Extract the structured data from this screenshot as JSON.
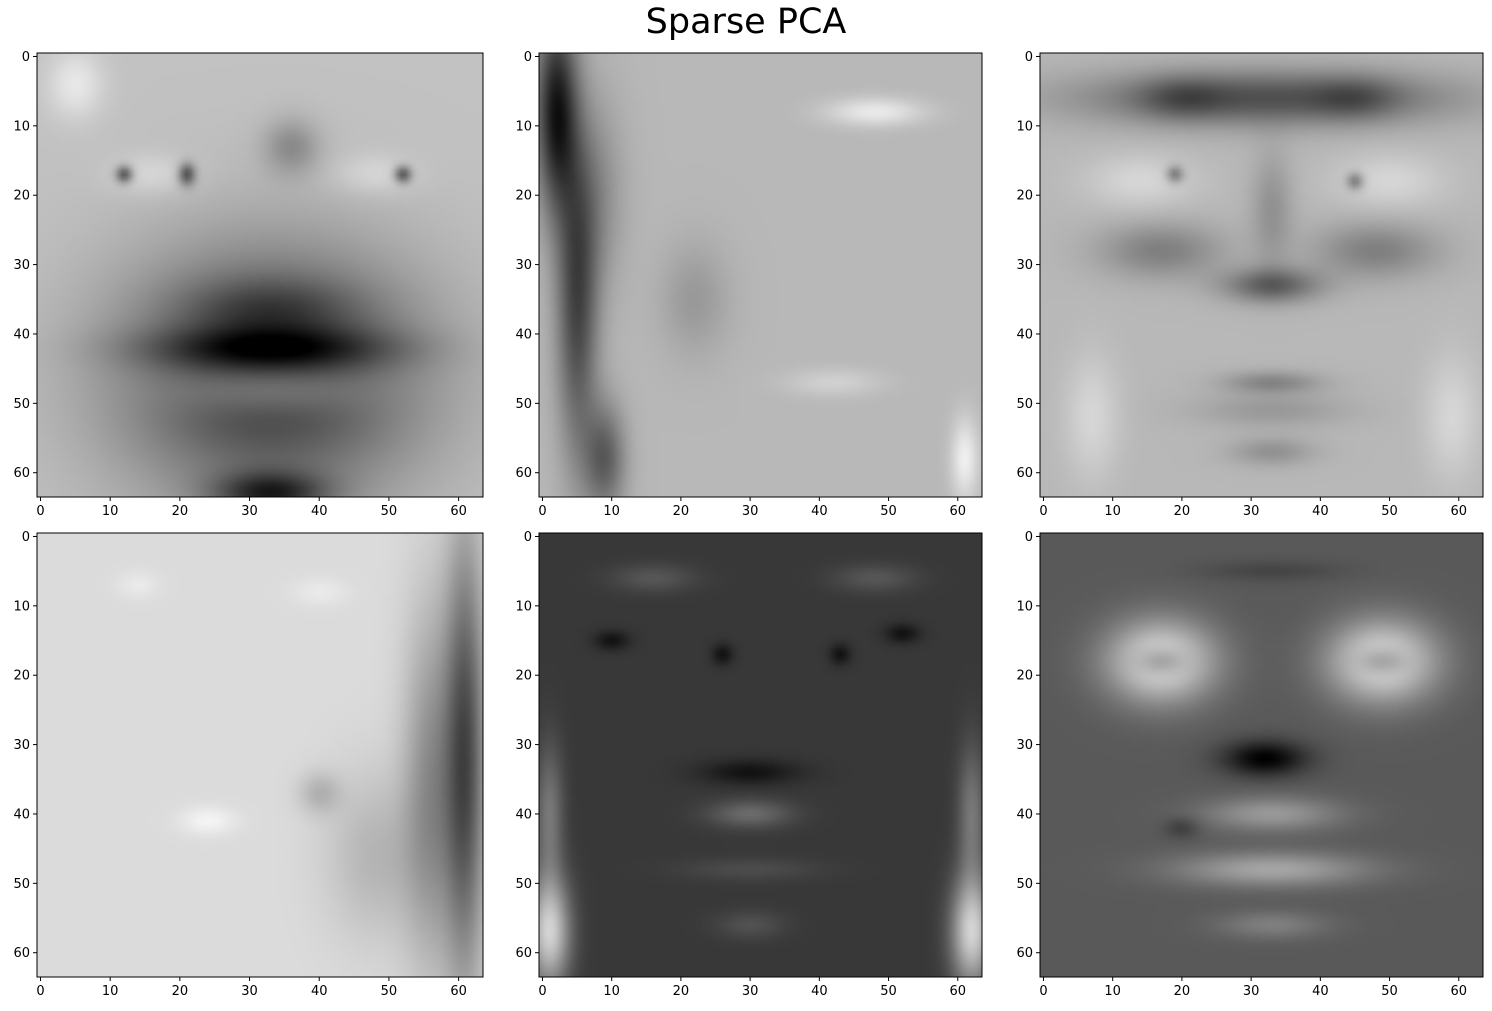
{
  "figure": {
    "title": "Sparse PCA"
  },
  "chart_data": [
    {
      "type": "heatmap",
      "colormap": "gray",
      "image_size": [
        64,
        64
      ],
      "xlim": [
        -0.5,
        63.5
      ],
      "ylim": [
        63.5,
        -0.5
      ],
      "xticks": [
        0,
        10,
        20,
        30,
        40,
        50,
        60
      ],
      "yticks": [
        0,
        10,
        20,
        30,
        40,
        50,
        60
      ],
      "background_level": 0.76,
      "features": [
        {
          "cx": 33,
          "cy": 46,
          "rx": 22,
          "ry": 18,
          "v": -0.55
        },
        {
          "cx": 33,
          "cy": 42,
          "rx": 18,
          "ry": 3,
          "v": -0.3
        },
        {
          "cx": 33,
          "cy": 48,
          "rx": 13,
          "ry": 3.5,
          "v": 0.22
        },
        {
          "cx": 33,
          "cy": 36,
          "rx": 12,
          "ry": 4,
          "v": -0.15
        },
        {
          "cx": 33,
          "cy": 63,
          "rx": 8,
          "ry": 3,
          "v": -0.45
        },
        {
          "cx": 16,
          "cy": 17,
          "rx": 6,
          "ry": 3,
          "v": 0.1
        },
        {
          "cx": 48,
          "cy": 17,
          "rx": 6,
          "ry": 3,
          "v": 0.1
        },
        {
          "cx": 12,
          "cy": 17,
          "rx": 1.2,
          "ry": 1.2,
          "v": -0.45
        },
        {
          "cx": 21,
          "cy": 17,
          "rx": 1.2,
          "ry": 1.6,
          "v": -0.45
        },
        {
          "cx": 52,
          "cy": 17,
          "rx": 1.2,
          "ry": 1.2,
          "v": -0.45
        },
        {
          "cx": 36,
          "cy": 13,
          "rx": 4,
          "ry": 4,
          "v": -0.2
        },
        {
          "cx": 5,
          "cy": 4,
          "rx": 4,
          "ry": 5,
          "v": 0.15
        }
      ]
    },
    {
      "type": "heatmap",
      "colormap": "gray",
      "image_size": [
        64,
        64
      ],
      "xlim": [
        -0.5,
        63.5
      ],
      "ylim": [
        63.5,
        -0.5
      ],
      "xticks": [
        0,
        10,
        20,
        30,
        40,
        50,
        60
      ],
      "yticks": [
        0,
        10,
        20,
        30,
        40,
        50,
        60
      ],
      "background_level": 0.72,
      "features": [
        {
          "cx": 2,
          "cy": 8,
          "rx": 3,
          "ry": 14,
          "v": -0.62
        },
        {
          "cx": 5,
          "cy": 35,
          "rx": 3,
          "ry": 22,
          "v": -0.45
        },
        {
          "cx": 9,
          "cy": 58,
          "rx": 3,
          "ry": 8,
          "v": -0.35
        },
        {
          "cx": 8,
          "cy": 20,
          "rx": 4,
          "ry": 14,
          "v": -0.15
        },
        {
          "cx": 48,
          "cy": 8,
          "rx": 7,
          "ry": 2,
          "v": 0.2
        },
        {
          "cx": 42,
          "cy": 47,
          "rx": 7,
          "ry": 2,
          "v": 0.1
        },
        {
          "cx": 22,
          "cy": 35,
          "rx": 5,
          "ry": 8,
          "v": -0.12
        },
        {
          "cx": 61,
          "cy": 58,
          "rx": 2,
          "ry": 6,
          "v": 0.22
        }
      ]
    },
    {
      "type": "heatmap",
      "colormap": "gray",
      "image_size": [
        64,
        64
      ],
      "xlim": [
        -0.5,
        63.5
      ],
      "ylim": [
        63.5,
        -0.5
      ],
      "xticks": [
        0,
        10,
        20,
        30,
        40,
        50,
        60
      ],
      "yticks": [
        0,
        10,
        20,
        30,
        40,
        50,
        60
      ],
      "background_level": 0.72,
      "features": [
        {
          "cx": 32,
          "cy": 6,
          "rx": 26,
          "ry": 4,
          "v": -0.4
        },
        {
          "cx": 20,
          "cy": 6,
          "rx": 6,
          "ry": 3,
          "v": -0.15
        },
        {
          "cx": 45,
          "cy": 6,
          "rx": 6,
          "ry": 3,
          "v": -0.15
        },
        {
          "cx": 14,
          "cy": 18,
          "rx": 8,
          "ry": 4,
          "v": 0.12
        },
        {
          "cx": 50,
          "cy": 18,
          "rx": 8,
          "ry": 4,
          "v": 0.12
        },
        {
          "cx": 19,
          "cy": 17,
          "rx": 1.2,
          "ry": 1.2,
          "v": -0.3
        },
        {
          "cx": 45,
          "cy": 18,
          "rx": 1.2,
          "ry": 1.2,
          "v": -0.3
        },
        {
          "cx": 17,
          "cy": 28,
          "rx": 9,
          "ry": 4,
          "v": -0.22
        },
        {
          "cx": 48,
          "cy": 28,
          "rx": 9,
          "ry": 4,
          "v": -0.22
        },
        {
          "cx": 33,
          "cy": 33,
          "rx": 7,
          "ry": 2.5,
          "v": -0.35
        },
        {
          "cx": 33,
          "cy": 22,
          "rx": 3,
          "ry": 8,
          "v": -0.15
        },
        {
          "cx": 33,
          "cy": 47,
          "rx": 7,
          "ry": 1.6,
          "v": -0.2
        },
        {
          "cx": 33,
          "cy": 51,
          "rx": 11,
          "ry": 2.5,
          "v": -0.12
        },
        {
          "cx": 33,
          "cy": 57,
          "rx": 6,
          "ry": 2,
          "v": -0.15
        },
        {
          "cx": 7,
          "cy": 52,
          "rx": 4,
          "ry": 9,
          "v": 0.12
        },
        {
          "cx": 59,
          "cy": 52,
          "rx": 4,
          "ry": 9,
          "v": 0.12
        }
      ]
    },
    {
      "type": "heatmap",
      "colormap": "gray",
      "image_size": [
        64,
        64
      ],
      "xlim": [
        -0.5,
        63.5
      ],
      "ylim": [
        63.5,
        -0.5
      ],
      "xticks": [
        0,
        10,
        20,
        30,
        40,
        50,
        60
      ],
      "yticks": [
        0,
        10,
        20,
        30,
        40,
        50,
        60
      ],
      "background_level": 0.86,
      "features": [
        {
          "cx": 61,
          "cy": 32,
          "rx": 3,
          "ry": 32,
          "v": -0.55
        },
        {
          "cx": 56,
          "cy": 36,
          "rx": 4,
          "ry": 26,
          "v": -0.3
        },
        {
          "cx": 48,
          "cy": 46,
          "rx": 7,
          "ry": 12,
          "v": -0.15
        },
        {
          "cx": 40,
          "cy": 37,
          "rx": 3,
          "ry": 3,
          "v": -0.15
        },
        {
          "cx": 24,
          "cy": 41,
          "rx": 4,
          "ry": 2,
          "v": 0.1
        },
        {
          "cx": 14,
          "cy": 7,
          "rx": 3,
          "ry": 2,
          "v": 0.06
        },
        {
          "cx": 40,
          "cy": 8,
          "rx": 4,
          "ry": 2,
          "v": 0.06
        }
      ]
    },
    {
      "type": "heatmap",
      "colormap": "gray",
      "image_size": [
        64,
        64
      ],
      "xlim": [
        -0.5,
        63.5
      ],
      "ylim": [
        63.5,
        -0.5
      ],
      "xticks": [
        0,
        10,
        20,
        30,
        40,
        50,
        60
      ],
      "yticks": [
        0,
        10,
        20,
        30,
        40,
        50,
        60
      ],
      "background_level": 0.22,
      "features": [
        {
          "cx": 1,
          "cy": 57,
          "rx": 3,
          "ry": 8,
          "v": 0.6
        },
        {
          "cx": 62,
          "cy": 57,
          "rx": 3,
          "ry": 8,
          "v": 0.6
        },
        {
          "cx": 1,
          "cy": 40,
          "rx": 2,
          "ry": 10,
          "v": 0.25
        },
        {
          "cx": 62,
          "cy": 40,
          "rx": 2,
          "ry": 10,
          "v": 0.25
        },
        {
          "cx": 16,
          "cy": 6,
          "rx": 6,
          "ry": 2,
          "v": 0.12
        },
        {
          "cx": 48,
          "cy": 6,
          "rx": 6,
          "ry": 2,
          "v": 0.12
        },
        {
          "cx": 10,
          "cy": 15,
          "rx": 2.5,
          "ry": 1.4,
          "v": -0.15
        },
        {
          "cx": 26,
          "cy": 17,
          "rx": 1.5,
          "ry": 1.5,
          "v": -0.15
        },
        {
          "cx": 43,
          "cy": 17,
          "rx": 1.5,
          "ry": 1.5,
          "v": -0.15
        },
        {
          "cx": 52,
          "cy": 14,
          "rx": 2.5,
          "ry": 1.4,
          "v": -0.15
        },
        {
          "cx": 30,
          "cy": 34,
          "rx": 7,
          "ry": 1.8,
          "v": -0.15
        },
        {
          "cx": 30,
          "cy": 40,
          "rx": 6,
          "ry": 2,
          "v": 0.2
        },
        {
          "cx": 30,
          "cy": 48,
          "rx": 10,
          "ry": 1.6,
          "v": 0.08
        },
        {
          "cx": 30,
          "cy": 56,
          "rx": 5,
          "ry": 2,
          "v": 0.1
        }
      ]
    },
    {
      "type": "heatmap",
      "colormap": "gray",
      "image_size": [
        64,
        64
      ],
      "xlim": [
        -0.5,
        63.5
      ],
      "ylim": [
        63.5,
        -0.5
      ],
      "xticks": [
        0,
        10,
        20,
        30,
        40,
        50,
        60
      ],
      "yticks": [
        0,
        10,
        20,
        30,
        40,
        50,
        60
      ],
      "background_level": 0.35,
      "features": [
        {
          "cx": 17,
          "cy": 18,
          "rx": 8,
          "ry": 6,
          "v": 0.55
        },
        {
          "cx": 49,
          "cy": 18,
          "rx": 8,
          "ry": 6,
          "v": 0.55
        },
        {
          "cx": 17,
          "cy": 18,
          "rx": 3.5,
          "ry": 2,
          "v": -0.25
        },
        {
          "cx": 49,
          "cy": 18,
          "rx": 3.5,
          "ry": 2,
          "v": -0.25
        },
        {
          "cx": 32,
          "cy": 32,
          "rx": 6,
          "ry": 2.5,
          "v": -0.35
        },
        {
          "cx": 33,
          "cy": 40,
          "rx": 10,
          "ry": 2.5,
          "v": 0.25
        },
        {
          "cx": 33,
          "cy": 48,
          "rx": 14,
          "ry": 2.5,
          "v": 0.3
        },
        {
          "cx": 20,
          "cy": 42,
          "rx": 2.5,
          "ry": 1.5,
          "v": -0.12
        },
        {
          "cx": 33,
          "cy": 56,
          "rx": 8,
          "ry": 2,
          "v": 0.15
        },
        {
          "cx": 33,
          "cy": 5,
          "rx": 10,
          "ry": 1.5,
          "v": -0.08
        }
      ]
    }
  ]
}
